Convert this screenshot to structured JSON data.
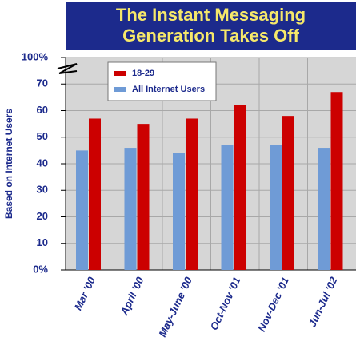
{
  "chart_data": {
    "type": "bar",
    "title": "The Instant Messaging Generation Takes Off",
    "y_label": "Based on Internet Users",
    "categories": [
      "Mar '00",
      "April '00",
      "May-June '00",
      "Oct-Nov '01",
      "Nov-Dec '01",
      "Jun-Jul '02"
    ],
    "series": [
      {
        "name": "All Internet Users",
        "color": "#6f9bd6",
        "values": [
          45,
          46,
          44,
          47,
          47,
          46
        ]
      },
      {
        "name": "18-29",
        "color": "#cc0000",
        "values": [
          57,
          55,
          57,
          62,
          58,
          67
        ]
      }
    ],
    "ylim": [
      0,
      100
    ],
    "ybreak": [
      70,
      100
    ],
    "yticks": [
      {
        "value": 0,
        "label": "0%"
      },
      10,
      20,
      30,
      40,
      50,
      60,
      70,
      {
        "value": 100,
        "label": "100%"
      }
    ],
    "grid": true,
    "legend": "top-left"
  }
}
